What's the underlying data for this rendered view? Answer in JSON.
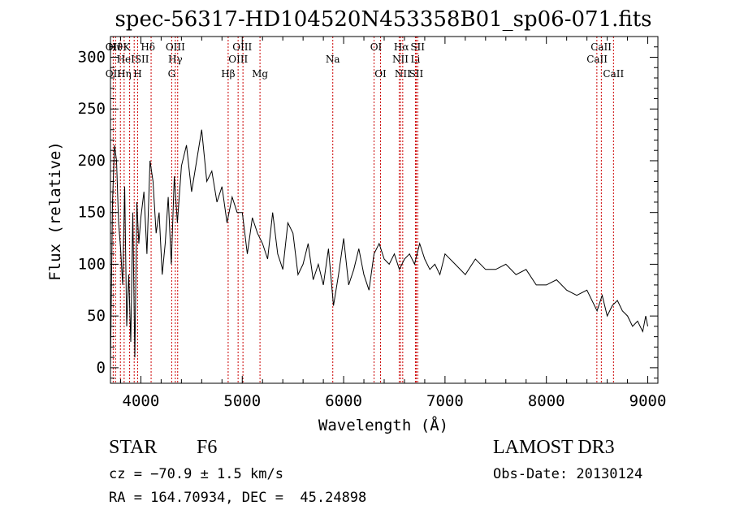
{
  "chart_data": {
    "type": "line",
    "title": "spec-56317-HD104520N453358B01_sp06-071.fits",
    "xlabel": "Wavelength (Å)",
    "ylabel": "Flux (relative)",
    "xlim": [
      3700,
      9100
    ],
    "ylim": [
      -15,
      320
    ],
    "xticks": [
      4000,
      5000,
      6000,
      7000,
      8000,
      9000
    ],
    "yticks": [
      0,
      50,
      100,
      150,
      200,
      250,
      300
    ],
    "grid": false,
    "line_color": "#000000",
    "marker_color": "#cc0000",
    "series": [
      {
        "name": "flux",
        "x": [
          3700,
          3720,
          3740,
          3760,
          3780,
          3800,
          3820,
          3840,
          3860,
          3880,
          3900,
          3920,
          3940,
          3960,
          3980,
          4000,
          4030,
          4060,
          4090,
          4120,
          4150,
          4180,
          4210,
          4240,
          4270,
          4300,
          4330,
          4360,
          4400,
          4450,
          4500,
          4550,
          4600,
          4650,
          4700,
          4750,
          4800,
          4850,
          4900,
          4950,
          5000,
          5050,
          5100,
          5150,
          5200,
          5250,
          5300,
          5350,
          5400,
          5450,
          5500,
          5550,
          5600,
          5650,
          5700,
          5750,
          5800,
          5850,
          5900,
          5950,
          6000,
          6050,
          6100,
          6150,
          6200,
          6250,
          6300,
          6350,
          6400,
          6450,
          6500,
          6550,
          6600,
          6650,
          6700,
          6750,
          6800,
          6850,
          6900,
          6950,
          7000,
          7100,
          7200,
          7300,
          7400,
          7500,
          7600,
          7700,
          7800,
          7900,
          8000,
          8100,
          8200,
          8300,
          8400,
          8500,
          8550,
          8600,
          8650,
          8700,
          8750,
          8800,
          8850,
          8900,
          8950,
          8980,
          9000
        ],
        "y": [
          0,
          160,
          215,
          200,
          140,
          115,
          80,
          175,
          40,
          90,
          25,
          150,
          10,
          160,
          120,
          145,
          170,
          110,
          200,
          180,
          130,
          150,
          90,
          120,
          165,
          100,
          185,
          140,
          195,
          215,
          170,
          200,
          230,
          180,
          190,
          160,
          175,
          140,
          165,
          150,
          150,
          110,
          145,
          130,
          120,
          105,
          150,
          110,
          95,
          140,
          130,
          90,
          100,
          120,
          85,
          100,
          80,
          115,
          60,
          90,
          125,
          80,
          95,
          115,
          90,
          75,
          110,
          120,
          105,
          100,
          110,
          95,
          105,
          110,
          100,
          120,
          105,
          95,
          100,
          90,
          110,
          100,
          90,
          105,
          95,
          95,
          100,
          90,
          95,
          80,
          80,
          85,
          75,
          70,
          75,
          55,
          70,
          50,
          60,
          65,
          55,
          50,
          40,
          45,
          35,
          50,
          40
        ]
      }
    ],
    "annotations": [
      {
        "label": "Hϑ",
        "x": 3750,
        "row": 1
      },
      {
        "label": "K",
        "x": 3860,
        "row": 1
      },
      {
        "label": "Hδ",
        "x": 4070,
        "row": 1
      },
      {
        "label": "OIII",
        "x": 4340,
        "row": 1
      },
      {
        "label": "OIII",
        "x": 5000,
        "row": 1
      },
      {
        "label": "OI",
        "x": 6320,
        "row": 1
      },
      {
        "label": "Hα",
        "x": 6570,
        "row": 1
      },
      {
        "label": "SII",
        "x": 6730,
        "row": 1
      },
      {
        "label": "CaII",
        "x": 8540,
        "row": 1
      },
      {
        "label": "OII",
        "x": 3727,
        "row": 0
      },
      {
        "label": "HeI",
        "x": 3850,
        "row": 2
      },
      {
        "label": "SII",
        "x": 4010,
        "row": 2
      },
      {
        "label": "Hγ",
        "x": 4340,
        "row": 2
      },
      {
        "label": "OIII",
        "x": 4960,
        "row": 2
      },
      {
        "label": "Na",
        "x": 5893,
        "row": 2
      },
      {
        "label": "NII",
        "x": 6560,
        "row": 2
      },
      {
        "label": "Li",
        "x": 6708,
        "row": 2
      },
      {
        "label": "CaII",
        "x": 8500,
        "row": 2
      },
      {
        "label": "OII",
        "x": 3727,
        "row": 3
      },
      {
        "label": "Hη",
        "x": 3835,
        "row": 3
      },
      {
        "label": "H",
        "x": 3968,
        "row": 3
      },
      {
        "label": "G",
        "x": 4304,
        "row": 3
      },
      {
        "label": "Hβ",
        "x": 4861,
        "row": 3
      },
      {
        "label": "Mg",
        "x": 5175,
        "row": 3
      },
      {
        "label": "OI",
        "x": 6364,
        "row": 3
      },
      {
        "label": "NII",
        "x": 6583,
        "row": 3
      },
      {
        "label": "SII",
        "x": 6716,
        "row": 3
      },
      {
        "label": "CaII",
        "x": 8662,
        "row": 3
      }
    ],
    "line_markers": [
      3727,
      3750,
      3798,
      3835,
      3889,
      3934,
      3968,
      4101,
      4304,
      4340,
      4363,
      4861,
      4959,
      5007,
      5175,
      5893,
      6300,
      6364,
      6548,
      6563,
      6583,
      6708,
      6716,
      6731,
      8498,
      8542,
      8662
    ]
  },
  "info": {
    "object_type": "STAR",
    "subclass": "F6",
    "survey": "LAMOST DR3",
    "redshift": "cz = −70.9 ± 1.5 km/s",
    "obs_date": "Obs-Date: 20130124",
    "coords": "RA = 164.70934, DEC =  45.24898"
  }
}
